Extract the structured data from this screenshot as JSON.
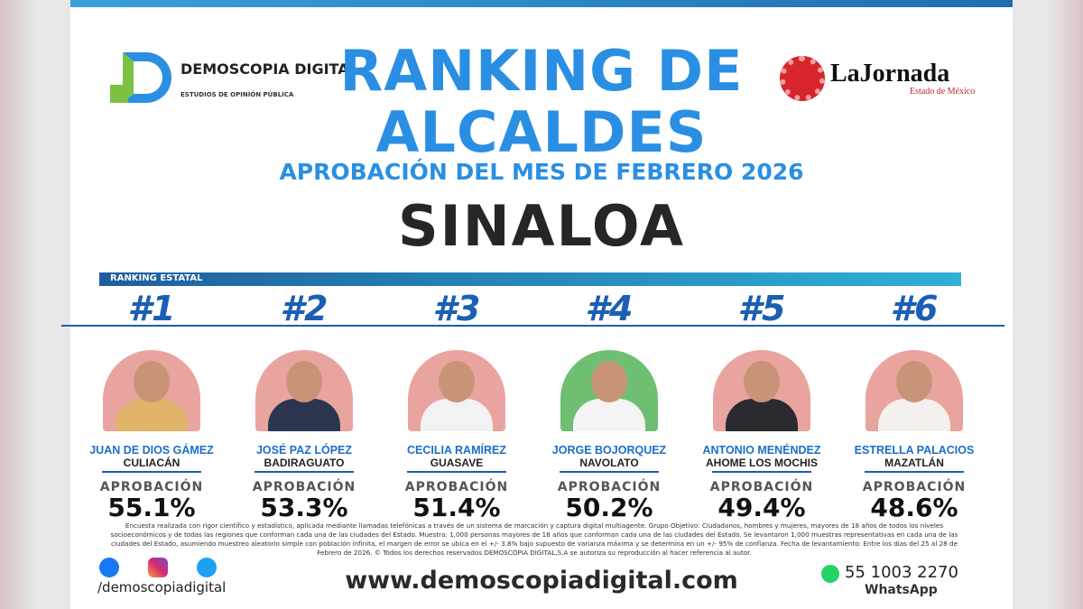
{
  "header": {
    "brand_name": "DEMOSCOPIA DIGITAL.",
    "brand_tagline": "ESTUDIOS DE OPINIÓN PÚBLICA",
    "partner_name": "LaJornada",
    "partner_sub": "Estado de México"
  },
  "title_line1": "RANKING DE",
  "title_line2": "ALCALDES",
  "subtitle": "APROBACIÓN DEL MES DE FEBRERO 2026",
  "state": "SINALOA",
  "section_label": "RANKING ESTATAL",
  "approval_label": "APROBACIÓN",
  "ranking": [
    {
      "rank": "#1",
      "name": "JUAN DE DIOS GÁMEZ",
      "municipality": "CULIACÁN",
      "approval": "55.1%"
    },
    {
      "rank": "#2",
      "name": "JOSÉ PAZ LÓPEZ",
      "municipality": "BADIRAGUATO",
      "approval": "53.3%"
    },
    {
      "rank": "#3",
      "name": "CECILIA RAMÍREZ",
      "municipality": "GUASAVE",
      "approval": "51.4%"
    },
    {
      "rank": "#4",
      "name": "JORGE BOJORQUEZ",
      "municipality": "NAVOLATO",
      "approval": "50.2%"
    },
    {
      "rank": "#5",
      "name": "ANTONIO MENÉNDEZ",
      "municipality": "AHOME LOS MOCHIS",
      "approval": "49.4%"
    },
    {
      "rank": "#6",
      "name": "ESTRELLA PALACIOS",
      "municipality": "MAZATLÁN",
      "approval": "48.6%"
    }
  ],
  "footer": {
    "disclaimer": "Encuesta realizada con rigor científico y estadístico, aplicada mediante llamadas telefónicas a través de un sistema de marcación y captura digital multiagente. Grupo Objetivo: Ciudadanos, hombres y mujeres, mayores de 18 años de todos los niveles socioeconómicos y de todas las regiones que conforman cada una de las ciudades del Estado. Muestra: 1,000 personas mayores de 18 años que conforman cada una de las ciudades del Estado. Se levantaron 1,000 muestras representativas en cada una de las ciudades del Estado, asumiendo muestreo aleatorio simple con población infinita, el margen de error se ubica en el +/- 3.8% bajo supuesto de varianza máxima y se determina en un +/- 95% de confianza. Fecha de levantamiento: Entre los días del 25 al 28 de Febrero de 2026. © Todos los derechos reservados DEMOSCOPIA DIGITAL,S.A se autoriza su reproducción al hacer referencia al autor.",
    "social_handle": "/demoscopiadigital",
    "website": "www.demoscopiadigital.com",
    "phone": "55 1003 2270",
    "phone_caption": "WhatsApp"
  }
}
